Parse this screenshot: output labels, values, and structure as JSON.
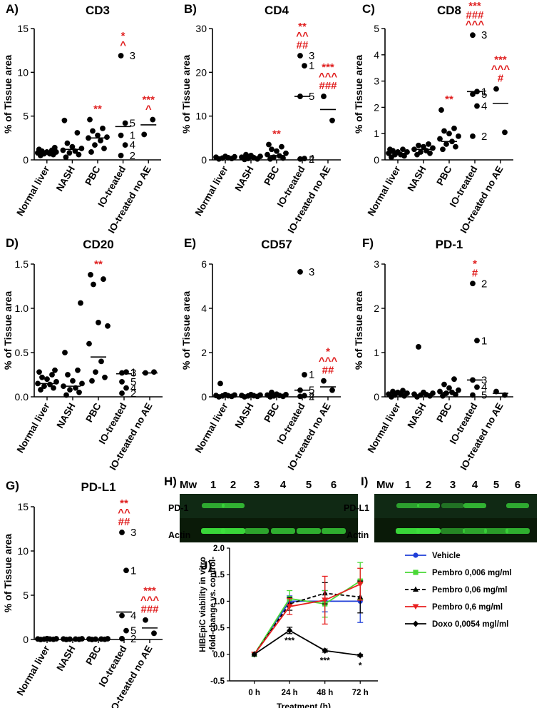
{
  "colors": {
    "sig": "#e02020",
    "dot": "#000000",
    "blot_bg": "#0a1a08",
    "band": "#3ce03c",
    "vehicle": "#1f3fd8",
    "pembro006": "#4ad836",
    "pembro06": "#000000",
    "pembro6": "#e82020",
    "doxo": "#000000"
  },
  "categories": [
    "Normal liver",
    "NASH",
    "PBC",
    "IO-treated",
    "IO-treated no AE"
  ],
  "ylabel": "% of Tissue area",
  "chart_data": [
    {
      "panel": "A)",
      "title": "CD3",
      "type": "scatter",
      "ylim": [
        0,
        15
      ],
      "ticks": [
        0,
        5,
        10,
        15
      ],
      "points": [
        [
          0.5,
          0.6,
          0.7,
          0.7,
          0.8,
          0.9,
          0.9,
          1.0,
          1.1,
          1.2,
          1.4
        ],
        [
          0.3,
          0.6,
          0.8,
          1.0,
          1.1,
          1.3,
          1.5,
          1.9,
          3.1,
          4.5
        ],
        [
          0.9,
          1.3,
          1.7,
          2.2,
          2.5,
          2.6,
          2.8,
          3.3,
          3.6,
          4.6
        ],
        [
          11.9,
          4.2,
          2.8,
          1.7,
          0.5
        ],
        [
          2.9,
          4.6
        ]
      ],
      "medians": [
        0.9,
        1.2,
        2.5,
        3.8,
        4.0
      ],
      "sig": [
        [],
        [],
        [
          "**"
        ],
        [
          "*",
          "^"
        ],
        [
          "***",
          "^"
        ]
      ],
      "labels": [
        [
          3,
          0,
          "3"
        ],
        [
          3,
          1,
          "5"
        ],
        [
          3,
          2,
          "1"
        ],
        [
          3,
          3,
          "4"
        ],
        [
          3,
          4,
          "2"
        ]
      ]
    },
    {
      "panel": "B)",
      "title": "CD4",
      "type": "scatter",
      "ylim": [
        0,
        30
      ],
      "ticks": [
        0,
        10,
        20,
        30
      ],
      "points": [
        [
          0.2,
          0.3,
          0.4,
          0.5,
          0.6,
          0.7,
          0.8
        ],
        [
          0.1,
          0.2,
          0.3,
          0.5,
          0.6,
          0.8,
          1.0,
          1.2
        ],
        [
          0.2,
          0.4,
          0.6,
          0.9,
          1.2,
          1.5,
          2.0,
          2.4,
          3.0,
          3.5
        ],
        [
          23.8,
          21.5,
          14.5,
          0.3,
          0.2
        ],
        [
          14.5,
          9.0
        ]
      ],
      "medians": [
        0.4,
        0.3,
        1.0,
        14.5,
        11.5
      ],
      "sig": [
        [],
        [],
        [
          "**"
        ],
        [
          "**",
          "^^",
          "##"
        ],
        [
          "***",
          "^^^",
          "###"
        ]
      ],
      "labels": [
        [
          3,
          0,
          "3"
        ],
        [
          3,
          1,
          "1"
        ],
        [
          3,
          2,
          "5"
        ],
        [
          3,
          3,
          "4"
        ],
        [
          3,
          4,
          "2"
        ]
      ]
    },
    {
      "panel": "C)",
      "title": "CD8",
      "type": "scatter",
      "ylim": [
        0,
        5
      ],
      "ticks": [
        0,
        1,
        2,
        3,
        4,
        5
      ],
      "points": [
        [
          0.1,
          0.15,
          0.2,
          0.2,
          0.25,
          0.3,
          0.3,
          0.35,
          0.4,
          0.4
        ],
        [
          0.2,
          0.25,
          0.3,
          0.35,
          0.4,
          0.45,
          0.5,
          0.55,
          0.6
        ],
        [
          0.4,
          0.5,
          0.6,
          0.7,
          0.8,
          0.9,
          1.0,
          1.1,
          1.2,
          1.9
        ],
        [
          4.75,
          2.6,
          2.5,
          2.05,
          0.9
        ],
        [
          2.7,
          1.05
        ]
      ],
      "medians": [
        0.25,
        0.4,
        0.7,
        2.6,
        2.15
      ],
      "sig": [
        [],
        [],
        [
          "**"
        ],
        [
          "***",
          "###",
          "^^^"
        ],
        [
          "***",
          "^^^",
          "#"
        ]
      ],
      "labels": [
        [
          3,
          0,
          "3"
        ],
        [
          3,
          1,
          "1"
        ],
        [
          3,
          2,
          "5"
        ],
        [
          3,
          3,
          "4"
        ],
        [
          3,
          4,
          "2"
        ]
      ]
    },
    {
      "panel": "D)",
      "title": "CD20",
      "type": "scatter",
      "ylim": [
        0,
        1.5
      ],
      "ticks": [
        0,
        0.5,
        1.0,
        1.5
      ],
      "tick_labels": [
        "0.0",
        "0.5",
        "1.0",
        "1.5"
      ],
      "points": [
        [
          0.08,
          0.1,
          0.12,
          0.14,
          0.15,
          0.17,
          0.2,
          0.22,
          0.25,
          0.28,
          0.3
        ],
        [
          0.02,
          0.05,
          0.08,
          0.1,
          0.12,
          0.15,
          0.18,
          0.25,
          0.3,
          0.5,
          1.06
        ],
        [
          0.18,
          0.22,
          0.28,
          0.4,
          0.6,
          0.8,
          0.84,
          1.27,
          1.33,
          1.38
        ],
        [
          0.27,
          0.28,
          0.17,
          0.1,
          0.04
        ],
        [
          0.27,
          0.28
        ]
      ],
      "medians": [
        0.15,
        0.12,
        0.45,
        0.26,
        0.27
      ],
      "sig": [
        [],
        [],
        [
          "**"
        ],
        [],
        []
      ],
      "labels": [
        [
          3,
          0,
          "3"
        ],
        [
          3,
          1,
          "1"
        ],
        [
          3,
          2,
          "5"
        ],
        [
          3,
          3,
          "4"
        ],
        [
          3,
          4,
          "2"
        ]
      ]
    },
    {
      "panel": "E)",
      "title": "CD57",
      "type": "scatter",
      "ylim": [
        0,
        6
      ],
      "ticks": [
        0,
        2,
        4,
        6
      ],
      "points": [
        [
          0.0,
          0.02,
          0.04,
          0.05,
          0.06,
          0.08,
          0.1,
          0.6
        ],
        [
          0.0,
          0.02,
          0.04,
          0.05,
          0.06,
          0.08,
          0.1
        ],
        [
          0.0,
          0.02,
          0.04,
          0.06,
          0.08,
          0.1,
          0.12,
          0.2
        ],
        [
          5.65,
          1.0,
          0.3,
          0.05,
          0.02
        ],
        [
          0.72,
          0.3
        ]
      ],
      "medians": [
        0.05,
        0.05,
        0.05,
        0.3,
        0.45
      ],
      "sig": [
        [],
        [],
        [],
        [],
        [
          "*",
          "^^^",
          "##"
        ]
      ],
      "labels": [
        [
          3,
          0,
          "3"
        ],
        [
          3,
          1,
          "1"
        ],
        [
          3,
          2,
          "5"
        ],
        [
          3,
          3,
          "4"
        ],
        [
          3,
          4,
          "2"
        ]
      ]
    },
    {
      "panel": "F)",
      "title": "PD-1",
      "type": "scatter",
      "ylim": [
        0,
        3
      ],
      "ticks": [
        0,
        1,
        2,
        3
      ],
      "points": [
        [
          0.0,
          0.02,
          0.04,
          0.05,
          0.06,
          0.08,
          0.1,
          0.12,
          0.14
        ],
        [
          0.0,
          0.02,
          0.04,
          0.05,
          0.06,
          0.08,
          0.1,
          1.13
        ],
        [
          0.02,
          0.05,
          0.08,
          0.1,
          0.12,
          0.15,
          0.2,
          0.28,
          0.4
        ],
        [
          2.56,
          1.27,
          0.38,
          0.22,
          0.04
        ],
        [
          0.12,
          0.04
        ]
      ],
      "medians": [
        0.05,
        0.04,
        0.1,
        0.38,
        0.08
      ],
      "sig": [
        [],
        [],
        [],
        [
          "*",
          "#"
        ],
        []
      ],
      "labels": [
        [
          3,
          0,
          "2"
        ],
        [
          3,
          1,
          "1"
        ],
        [
          3,
          2,
          "3"
        ],
        [
          3,
          3,
          "4"
        ],
        [
          3,
          4,
          "5"
        ]
      ]
    },
    {
      "panel": "G)",
      "title": "PD-L1",
      "type": "scatter",
      "ylim": [
        0,
        15
      ],
      "ticks": [
        0,
        5,
        10,
        15
      ],
      "points": [
        [
          0.0,
          0.02,
          0.04,
          0.05,
          0.06,
          0.08,
          0.1
        ],
        [
          0.0,
          0.02,
          0.04,
          0.05,
          0.06,
          0.08
        ],
        [
          0.0,
          0.02,
          0.04,
          0.05,
          0.06,
          0.08
        ],
        [
          12.1,
          7.8,
          2.7,
          1.0,
          0.1
        ],
        [
          2.2,
          0.7
        ]
      ],
      "medians": [
        0.04,
        0.04,
        0.04,
        3.1,
        1.3
      ],
      "sig": [
        [],
        [],
        [],
        [
          "**",
          "^^",
          "##"
        ],
        [
          "***",
          "^^^",
          "###"
        ]
      ],
      "labels": [
        [
          3,
          0,
          "3"
        ],
        [
          3,
          1,
          "1"
        ],
        [
          3,
          2,
          "4"
        ],
        [
          3,
          3,
          "5"
        ],
        [
          3,
          4,
          "2"
        ]
      ]
    },
    {
      "panel": "J)",
      "type": "line",
      "ylabel_lines": [
        "HIBEpiC viability in vitro",
        "-fold-change vs. control-"
      ],
      "xlabel": "Treatment (h)",
      "categories": [
        "0 h",
        "24 h",
        "48 h",
        "72 h"
      ],
      "ylim": [
        -0.5,
        2.0
      ],
      "ticks": [
        -0.5,
        0.0,
        0.5,
        1.0,
        1.5,
        2.0
      ],
      "tick_labels": [
        "-0.5",
        "0.0",
        "0.5",
        "1.0",
        "1.5",
        "2.0"
      ],
      "series": [
        {
          "name": "Vehicle",
          "values": [
            0,
            1.0,
            1.0,
            1.0
          ],
          "err": [
            0,
            0.1,
            0.2,
            0.4
          ]
        },
        {
          "name": "Pembro  0,006 mg/ml",
          "values": [
            0,
            1.05,
            0.95,
            1.38
          ],
          "err": [
            0,
            0.15,
            0.25,
            0.35
          ]
        },
        {
          "name": "Pembro 0,06 mg/ml",
          "values": [
            0,
            0.95,
            1.15,
            1.08
          ],
          "err": [
            0,
            0.12,
            0.2,
            0.3
          ]
        },
        {
          "name": "Pembro 0,6 mg/ml",
          "values": [
            0,
            0.9,
            1.02,
            1.32
          ],
          "err": [
            0,
            0.15,
            0.45,
            0.3
          ]
        },
        {
          "name": "Doxo 0,0054 mgl/ml",
          "values": [
            0,
            0.45,
            0.07,
            -0.02
          ],
          "err": [
            0,
            0.06,
            0.03,
            0.02
          ]
        }
      ],
      "sig": [
        "",
        "***",
        "***",
        "*"
      ]
    }
  ],
  "blot_h": {
    "panel": "H)",
    "mw": "Mw",
    "lanes": [
      "1",
      "2",
      "3",
      "4",
      "5",
      "6"
    ],
    "row1": "PD-1",
    "row2": "Actin",
    "row1_intensity": [
      0.7,
      0.75,
      0.0,
      0.0,
      0.0,
      0.0
    ],
    "row2_intensity": [
      0.95,
      0.95,
      0.7,
      0.75,
      0.75,
      0.75
    ]
  },
  "blot_i": {
    "panel": "I)",
    "mw": "Mw",
    "lanes": [
      "1",
      "2",
      "3",
      "4",
      "5",
      "6"
    ],
    "row1": "PD-L1",
    "row2": "Actin",
    "row1_intensity": [
      0.65,
      0.7,
      0.4,
      0.75,
      0.0,
      0.7
    ],
    "row2_intensity": [
      0.95,
      0.95,
      0.55,
      0.7,
      0.65,
      0.75
    ]
  }
}
